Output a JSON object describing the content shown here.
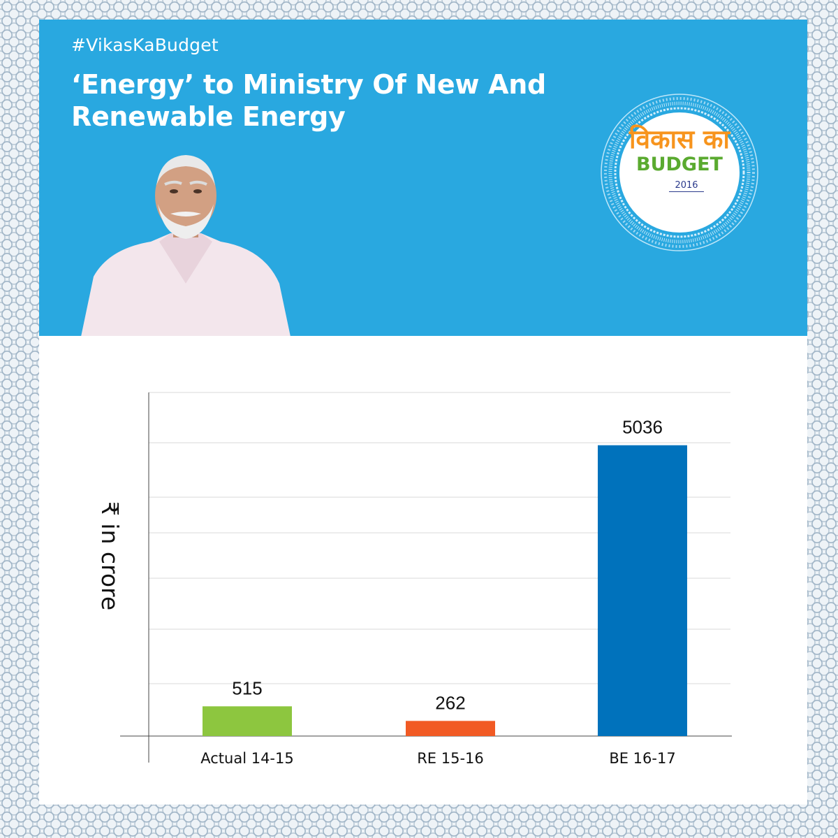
{
  "header": {
    "hashtag": "#VikasKaBudget",
    "headline": "‘Energy’ to Ministry Of New And Renewable Energy"
  },
  "logo": {
    "hindi_text": "विकास का",
    "budget_text": "BUDGET",
    "year": "2016"
  },
  "colors": {
    "banner": "#29a8e0",
    "bar_actual": "#8dc63f",
    "bar_re": "#f15a24",
    "bar_be": "#0072bc"
  },
  "chart_data": {
    "type": "bar",
    "title": "",
    "xlabel": "",
    "ylabel": "₹ in crore",
    "categories": [
      "Actual 14-15",
      "RE 15-16",
      "BE 16-17"
    ],
    "values": [
      515,
      262,
      5036
    ],
    "colors": [
      "#8dc63f",
      "#f15a24",
      "#0072bc"
    ],
    "ylim": [
      0,
      5950
    ],
    "grid": true,
    "legend": "none"
  }
}
